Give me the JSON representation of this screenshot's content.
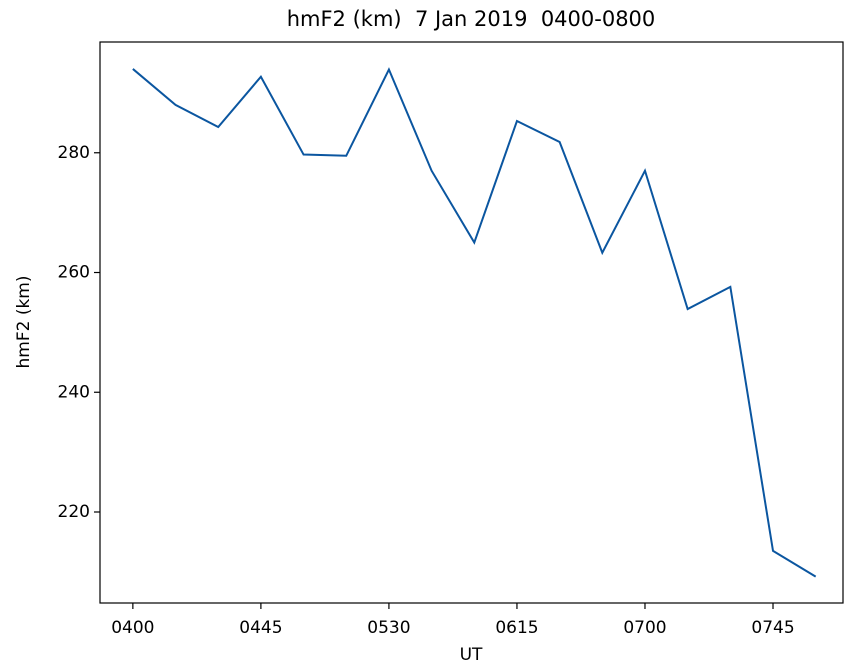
{
  "chart_data": {
    "type": "line",
    "title": "hmF2 (km)  7 Jan 2019  0400-0800",
    "x_label": "UT",
    "y_label": "hmF2 (km)",
    "categories": [
      "0400",
      null,
      null,
      "0445",
      null,
      null,
      "0530",
      null,
      null,
      "0615",
      null,
      null,
      "0700",
      null,
      null,
      "0745",
      null
    ],
    "series": [
      {
        "color": "#0b56a0",
        "values": [
          294.0,
          288.0,
          284.3,
          292.7,
          279.7,
          279.5,
          293.9,
          277.0,
          265.0,
          285.3,
          281.8,
          263.3,
          277.0,
          253.9,
          257.6,
          213.5,
          209.2
        ]
      }
    ],
    "ylim": [
      204.8,
      298.5
    ],
    "yticks": [
      220,
      240,
      260,
      280
    ],
    "grid": false
  }
}
